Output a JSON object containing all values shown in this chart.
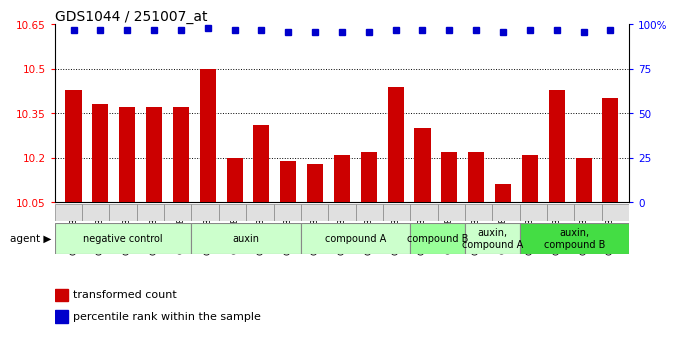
{
  "title": "GDS1044 / 251007_at",
  "samples": [
    "GSM25858",
    "GSM25859",
    "GSM25860",
    "GSM25861",
    "GSM25862",
    "GSM25863",
    "GSM25864",
    "GSM25865",
    "GSM25866",
    "GSM25867",
    "GSM25868",
    "GSM25869",
    "GSM25870",
    "GSM25871",
    "GSM25872",
    "GSM25873",
    "GSM25874",
    "GSM25875",
    "GSM25876",
    "GSM25877",
    "GSM25878"
  ],
  "bar_values": [
    10.43,
    10.38,
    10.37,
    10.37,
    10.37,
    10.5,
    10.2,
    10.31,
    10.19,
    10.18,
    10.21,
    10.22,
    10.44,
    10.3,
    10.22,
    10.22,
    10.11,
    10.21,
    10.43,
    10.2,
    10.4
  ],
  "percentile_values": [
    97,
    97,
    97,
    97,
    97,
    98,
    97,
    97,
    96,
    96,
    96,
    96,
    97,
    97,
    97,
    97,
    96,
    97,
    97,
    96,
    97
  ],
  "ylim_left": [
    10.05,
    10.65
  ],
  "ylim_right": [
    0,
    100
  ],
  "yticks_left": [
    10.05,
    10.2,
    10.35,
    10.5,
    10.65
  ],
  "yticks_right": [
    0,
    25,
    50,
    75,
    100
  ],
  "ytick_labels_left": [
    "10.05",
    "10.2",
    "10.35",
    "10.5",
    "10.65"
  ],
  "ytick_labels_right": [
    "0",
    "25",
    "50",
    "75",
    "100%"
  ],
  "bar_color": "#cc0000",
  "dot_color": "#0000cc",
  "agent_groups": [
    {
      "label": "negative control",
      "start": 0,
      "end": 5,
      "color": "#ccffcc"
    },
    {
      "label": "auxin",
      "start": 5,
      "end": 9,
      "color": "#ccffcc"
    },
    {
      "label": "compound A",
      "start": 9,
      "end": 13,
      "color": "#ccffcc"
    },
    {
      "label": "compound B",
      "start": 13,
      "end": 15,
      "color": "#99ff99"
    },
    {
      "label": "auxin,\ncompound A",
      "start": 15,
      "end": 17,
      "color": "#ccffcc"
    },
    {
      "label": "auxin,\ncompound B",
      "start": 17,
      "end": 21,
      "color": "#44dd44"
    }
  ],
  "grid_yticks": [
    10.2,
    10.35,
    10.5
  ]
}
